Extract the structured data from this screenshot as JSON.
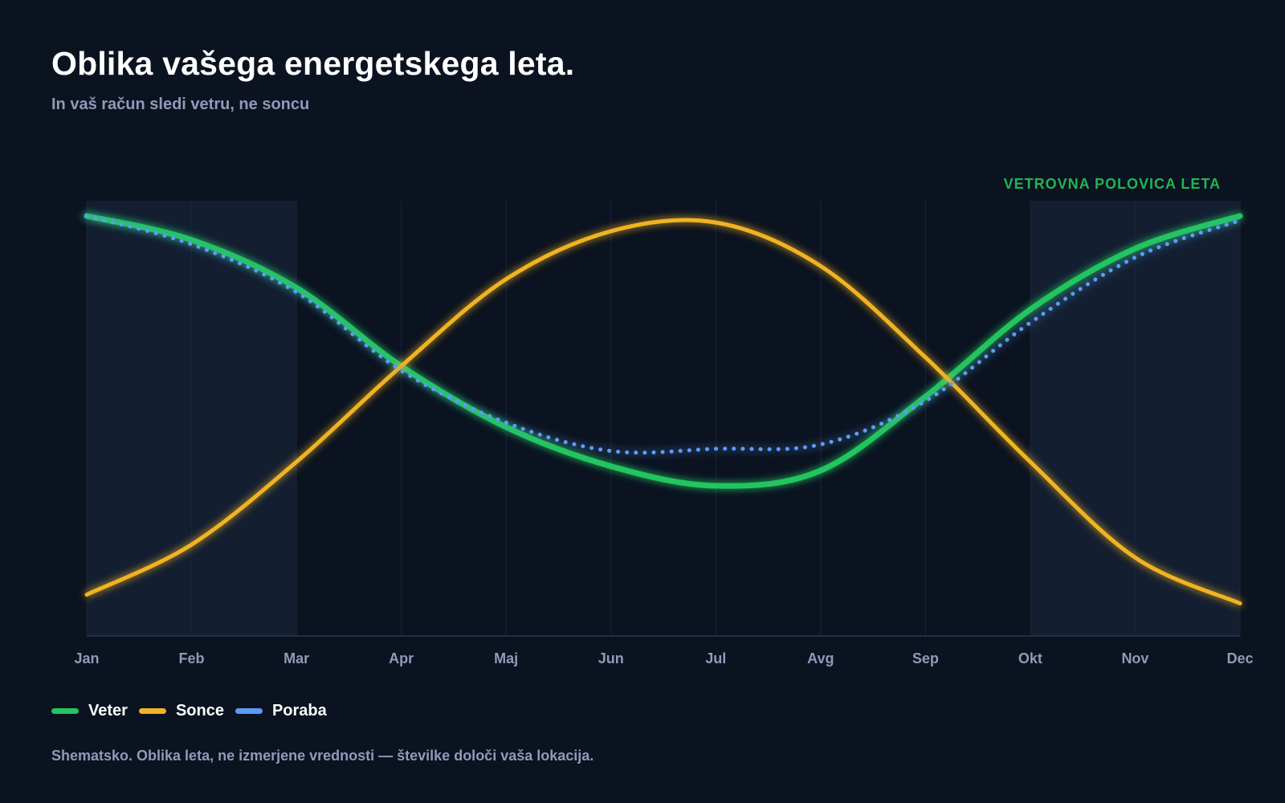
{
  "header": {
    "title": "Oblika vašega energetskega leta.",
    "subtitle": "In vaš račun sledi vetru, ne soncu"
  },
  "footnote": "Shematsko. Oblika leta, ne izmerjene vrednosti — številke določi vaša lokacija.",
  "chart_data": {
    "type": "line",
    "title": "Oblika vašega energetskega leta.",
    "subtitle": "In vaš račun sledi vetru, ne soncu",
    "xlabel": "",
    "ylabel": "",
    "categories": [
      "Jan",
      "Feb",
      "Mar",
      "Apr",
      "Maj",
      "Jun",
      "Jul",
      "Avg",
      "Sep",
      "Okt",
      "Nov",
      "Dec"
    ],
    "ylim": [
      0,
      100
    ],
    "grid": "vertical",
    "legend_position": "bottom-left",
    "shaded_regions": [
      {
        "from": 0,
        "to": 2,
        "label": ""
      },
      {
        "from": 9,
        "to": 11,
        "label": "VETROVNA POLOVICA LETA"
      }
    ],
    "series": [
      {
        "name": "Veter",
        "color": "#22c55e",
        "style": "solid",
        "values": [
          96.5,
          91,
          80,
          62,
          48,
          39,
          34.5,
          38,
          55,
          75,
          89,
          96.5
        ]
      },
      {
        "name": "Sonce",
        "color": "#f0b323",
        "style": "solid",
        "values": [
          9.5,
          21,
          40,
          62,
          82,
          93,
          95,
          85,
          64,
          40,
          18,
          7.5
        ]
      },
      {
        "name": "Poraba",
        "color": "#5b9cf5",
        "style": "dotted",
        "values": [
          96.5,
          90,
          79,
          61,
          49,
          42.5,
          43,
          44,
          54,
          72,
          87,
          95.5
        ]
      }
    ]
  }
}
